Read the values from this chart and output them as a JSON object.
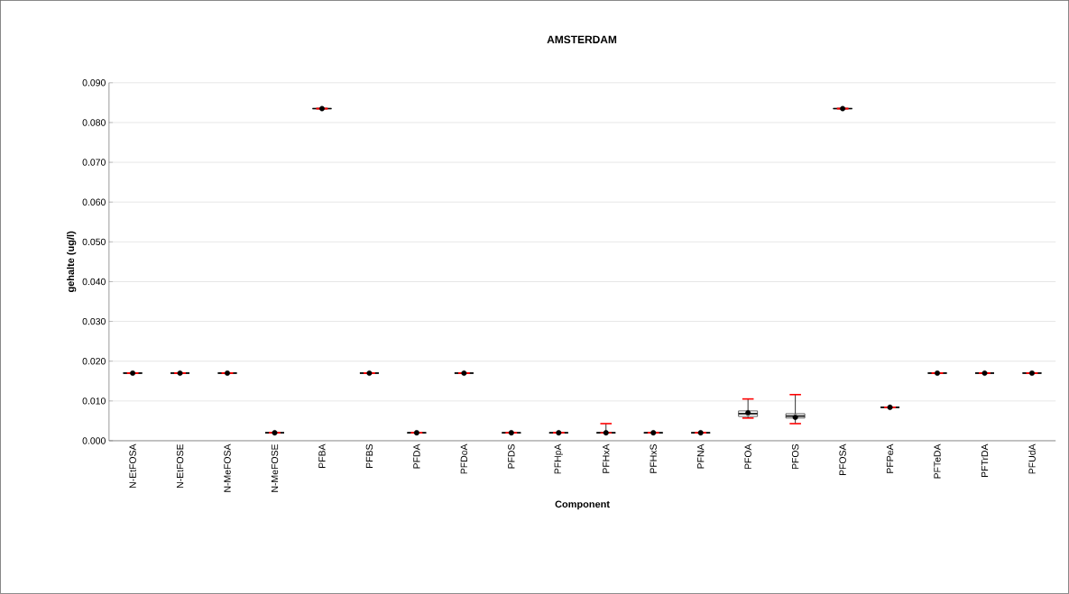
{
  "chart_data": {
    "type": "box",
    "title": "AMSTERDAM",
    "xlabel": "Component",
    "ylabel": "gehalte (ug/l)",
    "categories": [
      "N-EtFOSA",
      "N-EtFOSE",
      "N-MeFOSA",
      "N-MeFOSE",
      "PFBA",
      "PFBS",
      "PFDA",
      "PFDoA",
      "PFDS",
      "PFHpA",
      "PFHxA",
      "PFHxS",
      "PFNA",
      "PFOA",
      "PFOS",
      "PFOSA",
      "PFPeA",
      "PFTeDA",
      "PFTrDA",
      "PFUdA"
    ],
    "boxes": [
      {
        "low": 0.017,
        "q1": 0.017,
        "median": 0.017,
        "q3": 0.017,
        "high": 0.017,
        "mean": 0.017
      },
      {
        "low": 0.017,
        "q1": 0.017,
        "median": 0.017,
        "q3": 0.017,
        "high": 0.017,
        "mean": 0.017
      },
      {
        "low": 0.017,
        "q1": 0.017,
        "median": 0.017,
        "q3": 0.017,
        "high": 0.017,
        "mean": 0.017
      },
      {
        "low": 0.002,
        "q1": 0.002,
        "median": 0.002,
        "q3": 0.002,
        "high": 0.002,
        "mean": 0.002
      },
      {
        "low": 0.0835,
        "q1": 0.0835,
        "median": 0.0835,
        "q3": 0.0835,
        "high": 0.0835,
        "mean": 0.0835
      },
      {
        "low": 0.017,
        "q1": 0.017,
        "median": 0.017,
        "q3": 0.017,
        "high": 0.017,
        "mean": 0.017
      },
      {
        "low": 0.002,
        "q1": 0.002,
        "median": 0.002,
        "q3": 0.002,
        "high": 0.002,
        "mean": 0.002
      },
      {
        "low": 0.017,
        "q1": 0.017,
        "median": 0.017,
        "q3": 0.017,
        "high": 0.017,
        "mean": 0.017
      },
      {
        "low": 0.002,
        "q1": 0.002,
        "median": 0.002,
        "q3": 0.002,
        "high": 0.002,
        "mean": 0.002
      },
      {
        "low": 0.002,
        "q1": 0.002,
        "median": 0.002,
        "q3": 0.002,
        "high": 0.002,
        "mean": 0.002
      },
      {
        "low": 0.002,
        "q1": 0.002,
        "median": 0.002,
        "q3": 0.002,
        "high": 0.0043,
        "mean": 0.002
      },
      {
        "low": 0.002,
        "q1": 0.002,
        "median": 0.002,
        "q3": 0.002,
        "high": 0.002,
        "mean": 0.002
      },
      {
        "low": 0.002,
        "q1": 0.002,
        "median": 0.002,
        "q3": 0.002,
        "high": 0.002,
        "mean": 0.002
      },
      {
        "low": 0.0057,
        "q1": 0.0061,
        "median": 0.0068,
        "q3": 0.0075,
        "high": 0.0105,
        "mean": 0.007
      },
      {
        "low": 0.0043,
        "q1": 0.0057,
        "median": 0.0062,
        "q3": 0.0068,
        "high": 0.0116,
        "mean": 0.0059
      },
      {
        "low": 0.0835,
        "q1": 0.0835,
        "median": 0.0835,
        "q3": 0.0835,
        "high": 0.0835,
        "mean": 0.0835
      },
      {
        "low": 0.0084,
        "q1": 0.0084,
        "median": 0.0084,
        "q3": 0.0084,
        "high": 0.0084,
        "mean": 0.0084
      },
      {
        "low": 0.017,
        "q1": 0.017,
        "median": 0.017,
        "q3": 0.017,
        "high": 0.017,
        "mean": 0.017
      },
      {
        "low": 0.017,
        "q1": 0.017,
        "median": 0.017,
        "q3": 0.017,
        "high": 0.017,
        "mean": 0.017
      },
      {
        "low": 0.017,
        "q1": 0.017,
        "median": 0.017,
        "q3": 0.017,
        "high": 0.017,
        "mean": 0.017
      }
    ],
    "ylim": [
      0,
      0.09
    ],
    "yticks": [
      {
        "value": 0,
        "label": "0.000"
      },
      {
        "value": 0.01,
        "label": "0.010"
      },
      {
        "value": 0.02,
        "label": "0.020"
      },
      {
        "value": 0.03,
        "label": "0.030"
      },
      {
        "value": 0.04,
        "label": "0.040"
      },
      {
        "value": 0.05,
        "label": "0.050"
      },
      {
        "value": 0.06,
        "label": "0.060"
      },
      {
        "value": 0.07,
        "label": "0.070"
      },
      {
        "value": 0.08,
        "label": "0.080"
      },
      {
        "value": 0.09,
        "label": "0.090"
      }
    ],
    "grid": "y"
  }
}
